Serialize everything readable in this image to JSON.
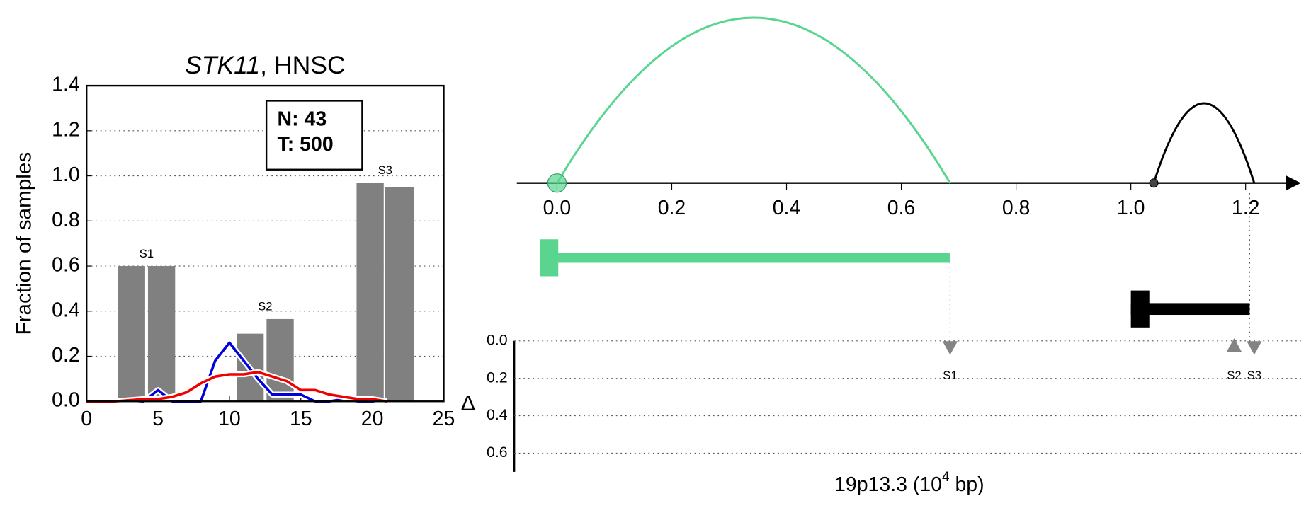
{
  "chart_data": [
    {
      "type": "bar",
      "title": [
        "STK11",
        ", HNSC"
      ],
      "ylabel": "Fraction of samples",
      "xlim": [
        0,
        25
      ],
      "ylim": [
        0,
        1.4
      ],
      "xticks": [
        0,
        5,
        10,
        15,
        20,
        25
      ],
      "yticks": [
        {
          "value": 0,
          "label": "0.0"
        },
        0.2,
        0.4,
        0.6,
        0.8,
        {
          "value": 1,
          "label": "1.0"
        },
        1.2,
        1.4
      ],
      "grid": true,
      "bars": {
        "left": [
          2.2,
          4.3,
          10.5,
          12.6,
          18.9,
          20.9
        ],
        "right": [
          4.1,
          6.2,
          12.4,
          14.5,
          20.8,
          22.9
        ],
        "values": [
          0.6,
          0.6,
          0.3,
          0.365,
          0.97,
          0.95
        ],
        "color": "#808080"
      },
      "bar_labels": [
        "S1",
        "S2",
        "S3"
      ],
      "annotation": [
        "N: 43",
        "T: 500"
      ],
      "series": [
        {
          "color": "#0000dd",
          "x": [
            0,
            1,
            2,
            3,
            4,
            5,
            6,
            7,
            8,
            9,
            10,
            11,
            12,
            13,
            14,
            15,
            16,
            17,
            18,
            19,
            20,
            21
          ],
          "values": [
            0,
            0,
            0,
            0,
            0,
            0.05,
            0,
            0,
            0,
            0.18,
            0.26,
            0.18,
            0.1,
            0.03,
            0.03,
            0.03,
            0,
            0,
            0.01,
            0,
            0,
            0
          ]
        },
        {
          "color": "#ee0000",
          "x": [
            0,
            1,
            2,
            3,
            4,
            5,
            6,
            7,
            8,
            9,
            10,
            11,
            12,
            13,
            14,
            15,
            16,
            17,
            18,
            19,
            20,
            21
          ],
          "values": [
            0,
            0,
            0,
            0.005,
            0.01,
            0.01,
            0.02,
            0.04,
            0.08,
            0.11,
            0.12,
            0.12,
            0.13,
            0.11,
            0.09,
            0.05,
            0.05,
            0.03,
            0.02,
            0.01,
            0.01,
            0
          ]
        }
      ]
    },
    {
      "type": "genome",
      "xlim": [
        -0.07,
        1.27
      ],
      "xticks": [
        {
          "value": 0,
          "label": "0.0"
        },
        0.2,
        0.4,
        0.6,
        0.8,
        {
          "value": 1,
          "label": "1.0"
        },
        1.2
      ],
      "arcs": [
        {
          "start": 0,
          "end": 0.685,
          "color": "#5ad590"
        },
        {
          "start": 1.04,
          "end": 1.215,
          "color": "#000000"
        }
      ],
      "genes": [
        {
          "start": -0.03,
          "end": 0.685,
          "color": "#5ad590"
        },
        {
          "start": 1.0,
          "end": 1.207,
          "color": "#000000"
        }
      ],
      "ylabel": "Δ",
      "ylim": [
        0,
        0.7
      ],
      "yticks": [
        {
          "value": 0,
          "label": "0.0"
        },
        0.2,
        0.4,
        0.6
      ],
      "markers": [
        {
          "label": "S1",
          "x": 0.685,
          "y": 0.03,
          "shape": "down"
        },
        {
          "label": "S2",
          "x": 1.18,
          "y": 0.03,
          "shape": "up"
        },
        {
          "label": "S3",
          "x": 1.215,
          "y": 0.03,
          "shape": "down"
        }
      ],
      "xlabel": [
        "19p13.3 (10",
        "4",
        " bp)"
      ]
    }
  ]
}
